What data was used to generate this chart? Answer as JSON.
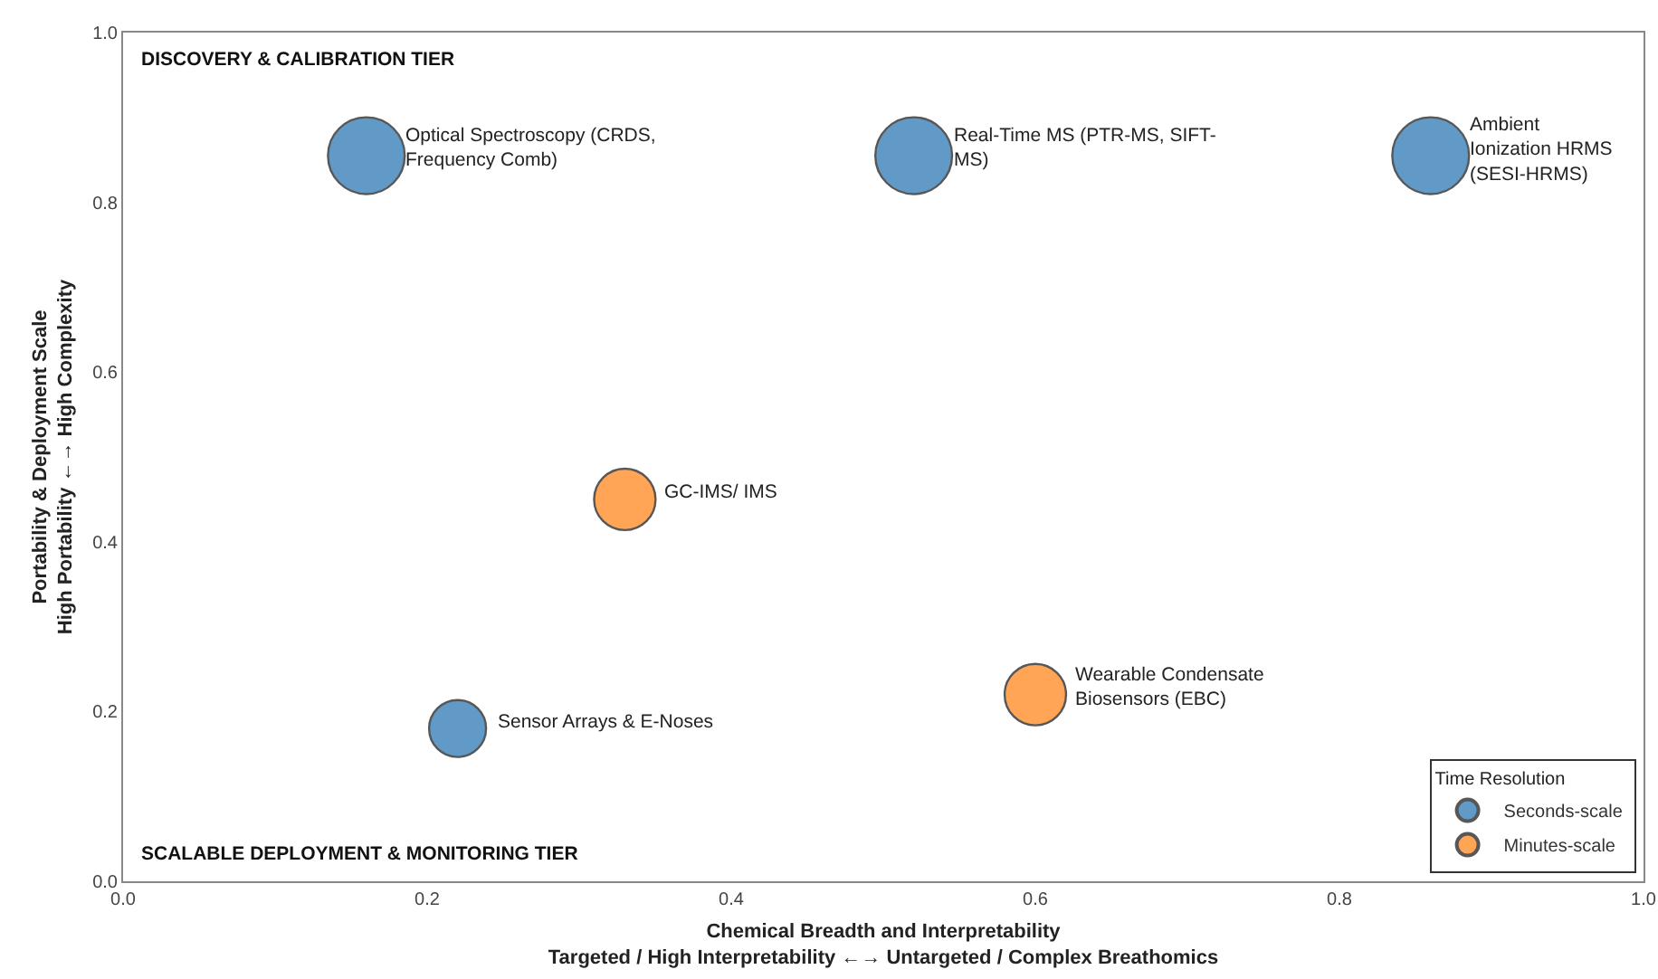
{
  "chart_data": {
    "type": "bubble",
    "xlabel": "Chemical Breadth and Interpretability\nTargeted / High Interpretability ←→ Untargeted / Complex Breathomics",
    "ylabel": "Portability & Deployment Scale\nHigh Portability ←→ High Complexity",
    "legend_title": "Time Resolution",
    "series": [
      {
        "name": "Seconds-scale",
        "color": "#1f6fb0",
        "x": [
          0.16,
          0.52,
          0.86,
          0.22
        ],
        "values": [
          0.855,
          0.855,
          0.855,
          0.18
        ],
        "sizes": [
          1,
          1,
          1,
          0.55
        ]
      },
      {
        "name": "Minutes-scale",
        "color": "#ff7f0e",
        "x": [
          0.33,
          0.6
        ],
        "values": [
          0.45,
          0.22
        ],
        "sizes": [
          0.64,
          0.64
        ]
      }
    ],
    "annotations": [
      "DISCOVERY & CALIBRATION TIER",
      "SCALABLE DEPLOYMENT & MONITORING TIER",
      {
        "text": "Optical Spectroscopy (CRDS,\nFrequency Comb)",
        "x": 0.16,
        "y": 0.855
      },
      {
        "text": "Real-Time MS (PTR-MS, SIFT-\nMS)",
        "x": 0.52,
        "y": 0.855
      },
      {
        "text": "Ambient\nIonization HRMS\n(SESI-HRMS)",
        "x": 0.86,
        "y": 0.855
      },
      {
        "text": "GC-IMS/ IMS",
        "x": 0.33,
        "y": 0.45
      },
      {
        "text": "Sensor Arrays & E-Noses",
        "x": 0.22,
        "y": 0.18
      },
      {
        "text": "Wearable Condensate\nBiosensors (EBC)",
        "x": 0.6,
        "y": 0.22
      }
    ],
    "xlim": [
      0,
      1
    ],
    "xticks": [
      {
        "value": 0,
        "label": "0.0"
      },
      0.2,
      0.4,
      0.6,
      0.8,
      {
        "value": 1,
        "label": "1.0"
      }
    ],
    "ylim": [
      0,
      1
    ],
    "yticks": [
      {
        "value": 0,
        "label": "0.0"
      },
      0.2,
      0.4,
      0.6,
      0.8,
      {
        "value": 1,
        "label": "1.0"
      }
    ],
    "grid": false,
    "legend": "bottom right",
    "marker": "circle"
  }
}
